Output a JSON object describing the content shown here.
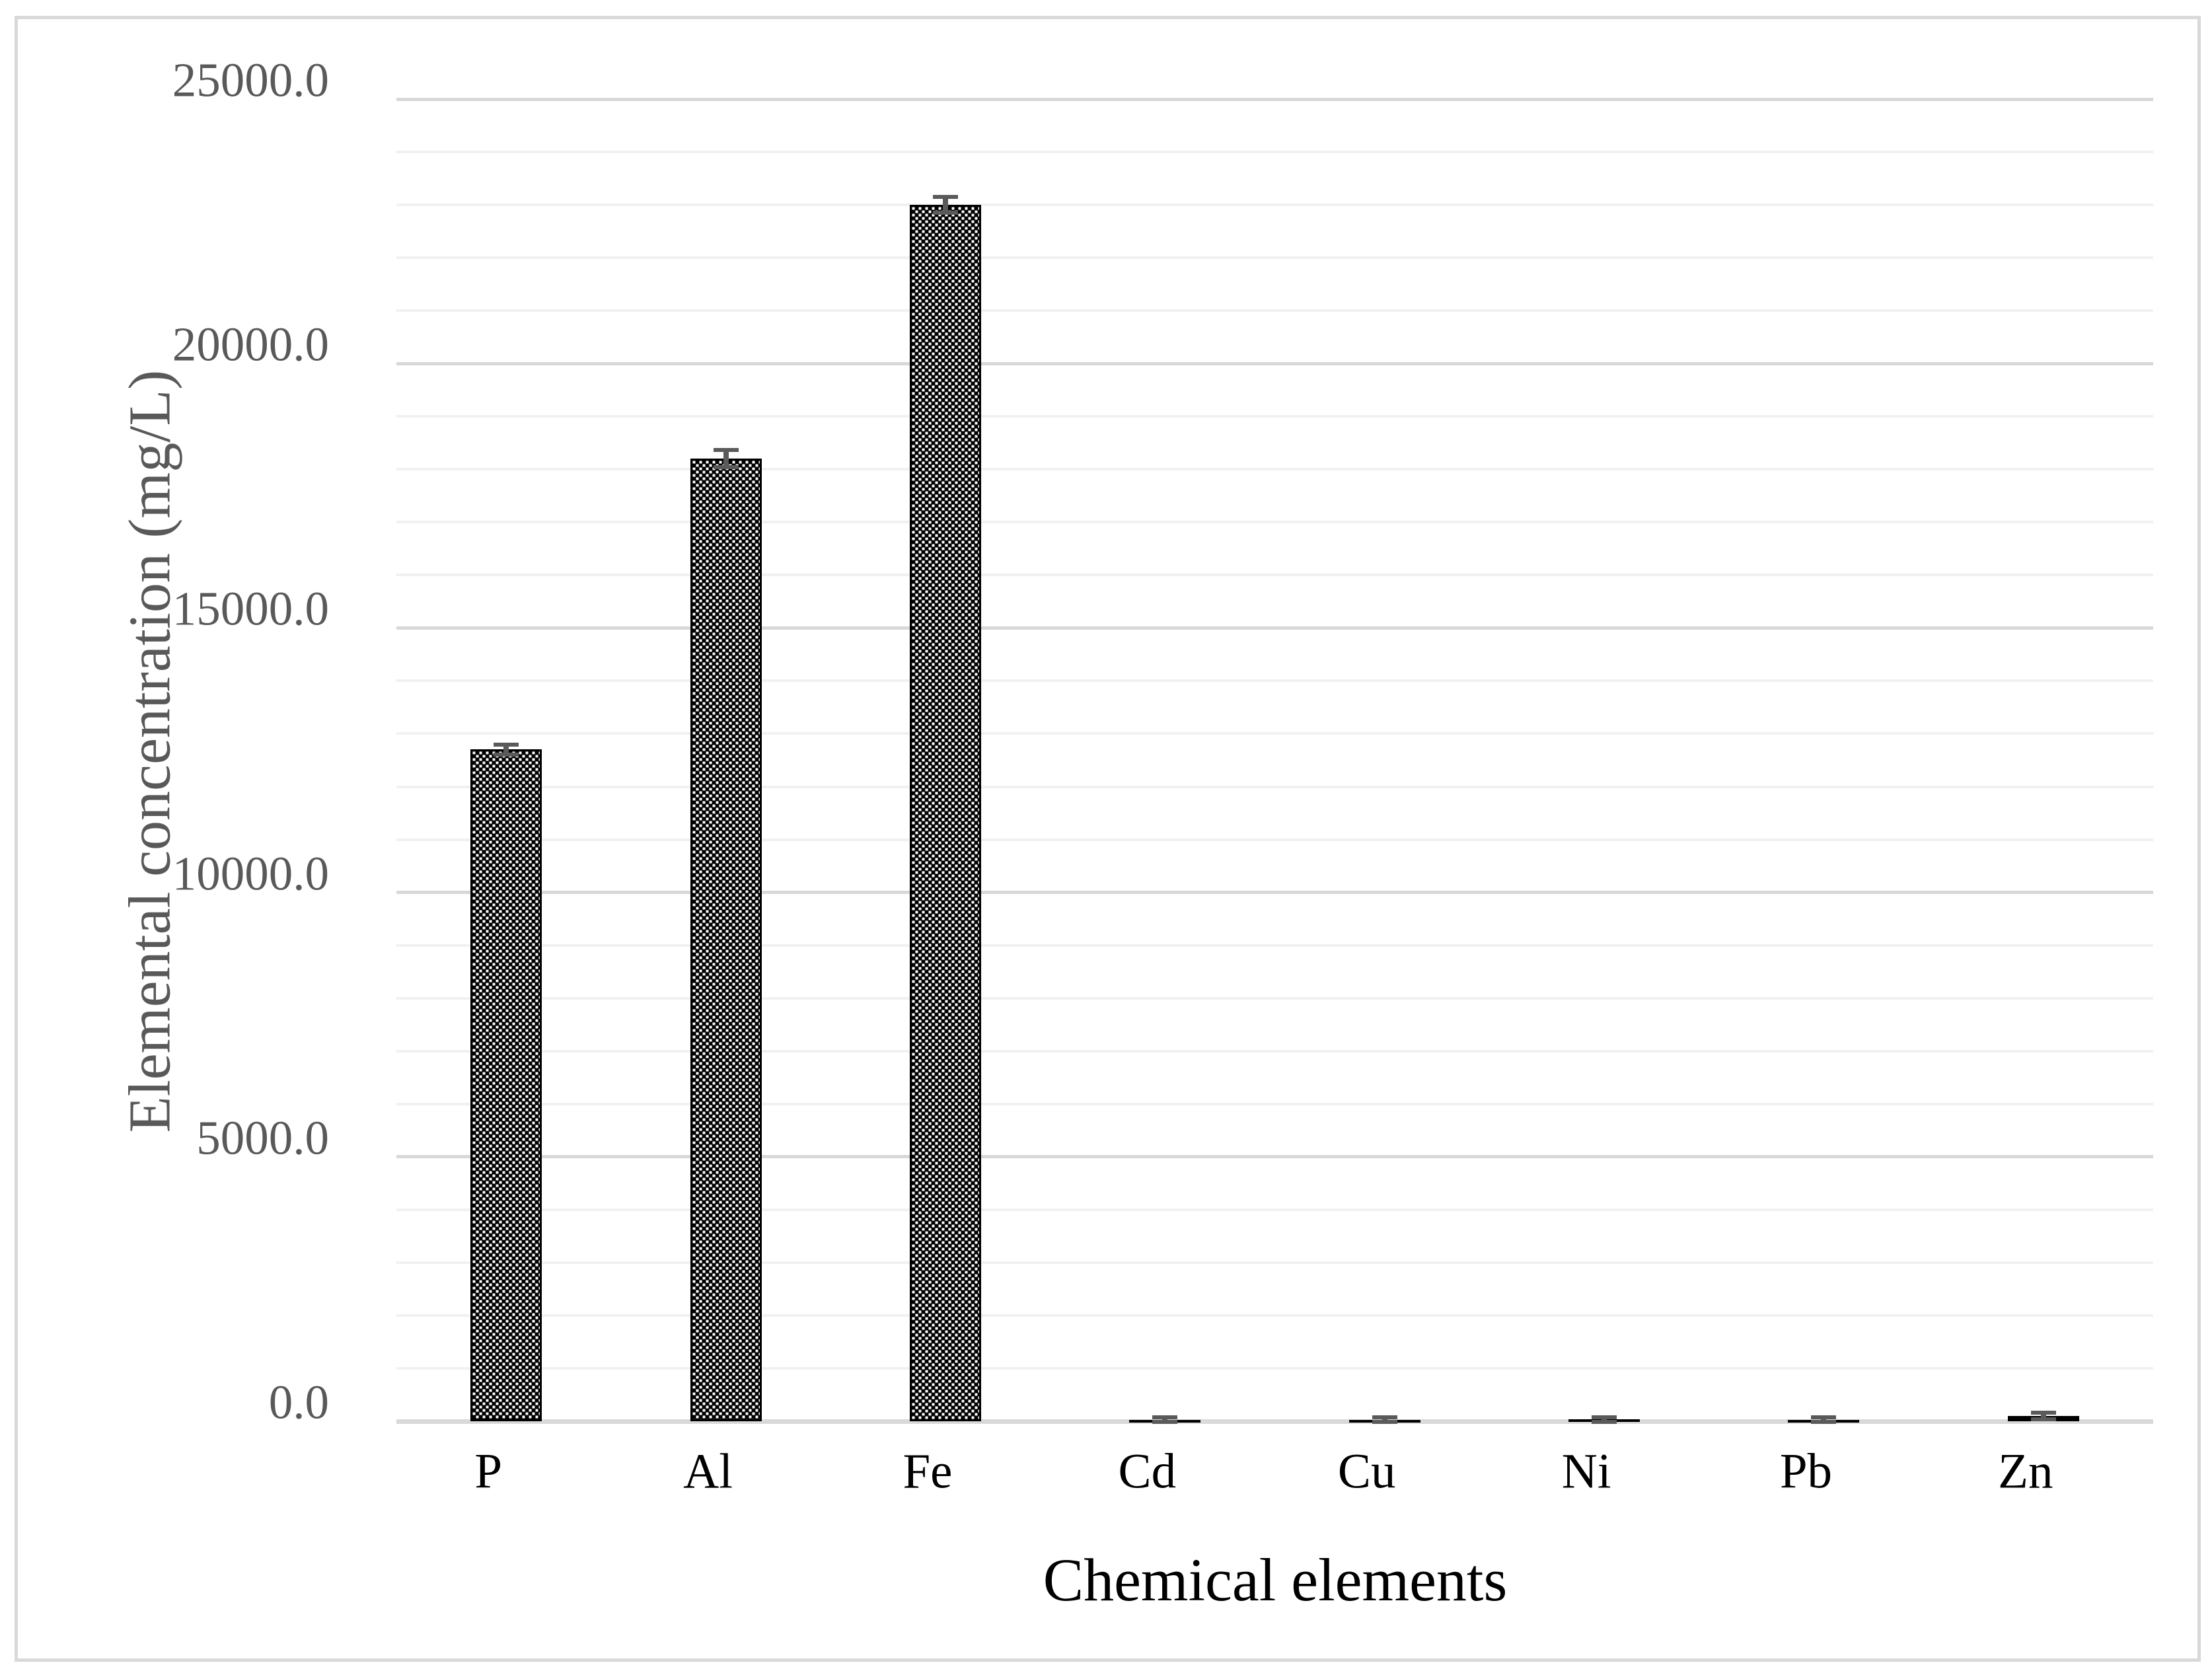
{
  "chart_data": {
    "type": "bar",
    "title": "",
    "xlabel": "Chemical elements",
    "ylabel": "Elemental concentration (mg/L)",
    "categories": [
      "P",
      "Al",
      "Fe",
      "Cd",
      "Cu",
      "Ni",
      "Pb",
      "Zn"
    ],
    "series": [
      {
        "name": "Elemental concentration",
        "values": [
          12700,
          18200,
          23000,
          30,
          30,
          35,
          30,
          100
        ],
        "errors": [
          90,
          160,
          150,
          40,
          40,
          45,
          40,
          60
        ]
      }
    ],
    "ylim": [
      0,
      25000
    ],
    "ytick_interval": 5000,
    "yminor_interval": 1000,
    "ytick_labels": [
      "0.0",
      "5000.0",
      "10000.0",
      "15000.0",
      "20000.0",
      "25000.0"
    ],
    "grid": "horizontal major and minor gridlines",
    "legend_position": "none",
    "bar_style": "black-and-white dotted-diamond pattern fill with black outline and gray error bars"
  },
  "colors": {
    "bar_fill_base": "#000000",
    "bar_pattern_dot": "#ffffff",
    "bar_outline": "#000000",
    "error_bar": "#5a5a5a",
    "major_gridline": "#d8d8d8",
    "minor_gridline": "#f1f1f1",
    "axis_line": "#d9d9d9",
    "tick_label": "#595959",
    "category_label": "#000000",
    "axis_title_y": "#595959",
    "axis_title_x": "#000000",
    "chart_border": "#d9d9d9",
    "background": "#ffffff"
  }
}
